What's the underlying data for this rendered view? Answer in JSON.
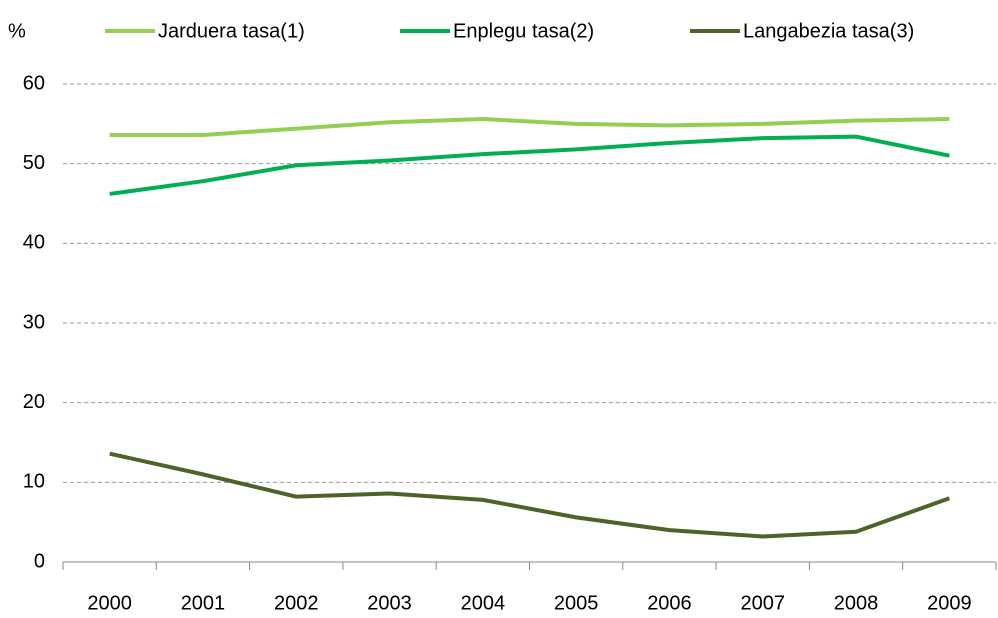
{
  "chart_data": {
    "type": "line",
    "y_label": "%",
    "categories": [
      "2000",
      "2001",
      "2002",
      "2003",
      "2004",
      "2005",
      "2006",
      "2007",
      "2008",
      "2009"
    ],
    "series": [
      {
        "name": "Jarduera tasa(1)",
        "color": "#92d050",
        "values": [
          53.6,
          53.6,
          54.4,
          55.2,
          55.6,
          55.0,
          54.8,
          55.0,
          55.4,
          55.6
        ]
      },
      {
        "name": "Enplegu tasa(2)",
        "color": "#00b050",
        "values": [
          46.2,
          47.8,
          49.8,
          50.4,
          51.2,
          51.8,
          52.6,
          53.2,
          53.4,
          51.0
        ]
      },
      {
        "name": "Langabezia tasa(3)",
        "color": "#4f6228",
        "values": [
          13.6,
          11.0,
          8.2,
          8.6,
          7.8,
          5.6,
          4.0,
          3.2,
          3.8,
          8.0
        ]
      }
    ],
    "ylim": [
      0,
      60
    ],
    "yticks": [
      0,
      10,
      20,
      30,
      40,
      50,
      60
    ],
    "grid": true,
    "legend": "top"
  }
}
